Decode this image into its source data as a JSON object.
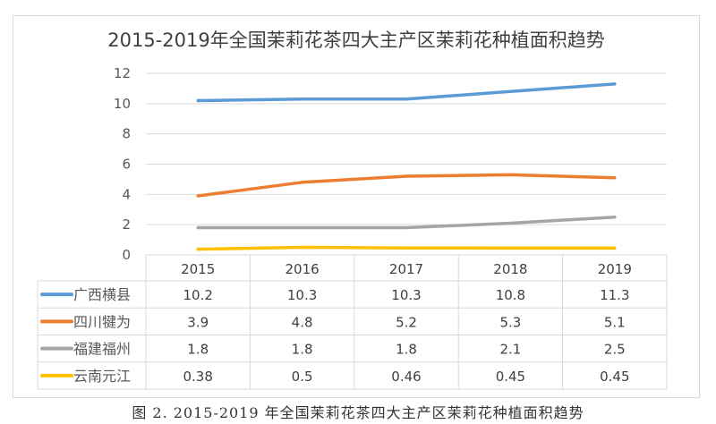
{
  "caption": "图 2. 2015-2019 年全国茉莉花茶四大主产区茉莉花种植面积趋势",
  "chart_data": {
    "type": "line",
    "title": "2015-2019年全国茉莉花茶四大主产区茉莉花种植面积趋势",
    "xlabel": "",
    "ylabel": "",
    "categories": [
      "2015",
      "2016",
      "2017",
      "2018",
      "2019"
    ],
    "ylim": [
      0,
      12
    ],
    "yticks": [
      "0",
      "2",
      "4",
      "6",
      "8",
      "10",
      "12"
    ],
    "grid": true,
    "legend": "data-table-left",
    "series": [
      {
        "name": "广西横县",
        "color": "#5b9bd5",
        "values": [
          10.2,
          10.3,
          10.3,
          10.8,
          11.3
        ],
        "labels": [
          "10.2",
          "10.3",
          "10.3",
          "10.8",
          "11.3"
        ]
      },
      {
        "name": "四川犍为",
        "color": "#ed7d31",
        "values": [
          3.9,
          4.8,
          5.2,
          5.3,
          5.1
        ],
        "labels": [
          "3.9",
          "4.8",
          "5.2",
          "5.3",
          "5.1"
        ]
      },
      {
        "name": "福建福州",
        "color": "#a5a5a5",
        "values": [
          1.8,
          1.8,
          1.8,
          2.1,
          2.5
        ],
        "labels": [
          "1.8",
          "1.8",
          "1.8",
          "2.1",
          "2.5"
        ]
      },
      {
        "name": "云南元江",
        "color": "#ffc000",
        "values": [
          0.38,
          0.5,
          0.46,
          0.45,
          0.45
        ],
        "labels": [
          "0.38",
          "0.5",
          "0.46",
          "0.45",
          "0.45"
        ]
      }
    ]
  }
}
